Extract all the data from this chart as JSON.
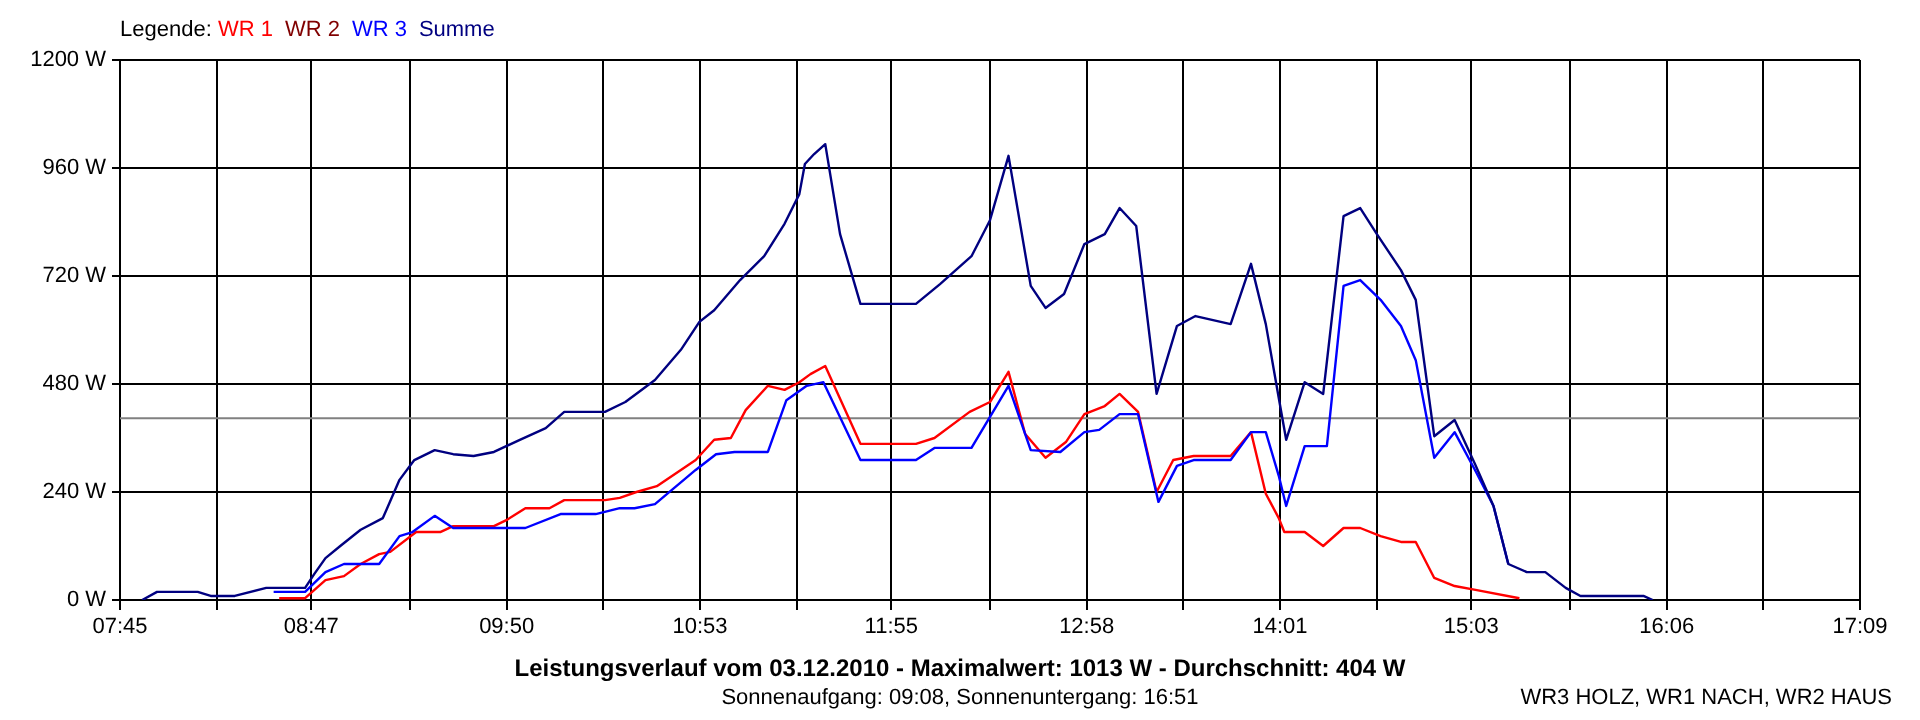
{
  "chart_data": {
    "type": "line",
    "title": "Leistungsverlauf vom 03.12.2010 - Maximalwert: 1013 W - Durchschnitt: 404 W",
    "subtitle": "Sonnenaufgang: 09:08, Sonnenuntergang: 16:51",
    "annotations": [
      "WR3 HOLZ, WR1 NACH, WR2 HAUS"
    ],
    "legend_title": "Legende:",
    "legend": "top left",
    "grid": true,
    "marker": "none",
    "line_style": "solid",
    "xlim": [
      7.75,
      17.15
    ],
    "xticks": [
      {
        "value": 7.75,
        "label": "07:45"
      },
      {
        "value": 8.2722,
        "label": null
      },
      {
        "value": 8.7833,
        "label": "08:47"
      },
      {
        "value": 9.3167,
        "label": null
      },
      {
        "value": 9.8389,
        "label": "09:50"
      },
      {
        "value": 10.3611,
        "label": null
      },
      {
        "value": 10.8833,
        "label": "10:53"
      },
      {
        "value": 11.4056,
        "label": null
      },
      {
        "value": 11.9167,
        "label": "11:55"
      },
      {
        "value": 12.45,
        "label": null
      },
      {
        "value": 12.9722,
        "label": "12:58"
      },
      {
        "value": 13.4944,
        "label": null
      },
      {
        "value": 14.0167,
        "label": "14:01"
      },
      {
        "value": 14.5389,
        "label": null
      },
      {
        "value": 15.05,
        "label": "15:03"
      },
      {
        "value": 15.5833,
        "label": null
      },
      {
        "value": 16.1056,
        "label": "16:06"
      },
      {
        "value": 16.6278,
        "label": null
      },
      {
        "value": 17.15,
        "label": "17:09"
      }
    ],
    "ylim": [
      0,
      1200
    ],
    "yticks": [
      {
        "value": 0,
        "label": "0 W"
      },
      {
        "value": 240,
        "label": "240 W"
      },
      {
        "value": 480,
        "label": "480 W"
      },
      {
        "value": 720,
        "label": "720 W"
      },
      {
        "value": 960,
        "label": "960 W"
      },
      {
        "value": 1200,
        "label": "1200 W"
      }
    ],
    "ref_lines": [
      {
        "axis": "y",
        "value": 404,
        "color": "#808080"
      }
    ],
    "series": [
      {
        "name": "WR 1",
        "color": "#ff0000",
        "x": [
          8.61,
          8.75,
          8.86,
          8.96,
          9.05,
          9.15,
          9.21,
          9.35,
          9.48,
          9.55,
          9.77,
          9.84,
          9.94,
          10.07,
          10.15,
          10.37,
          10.45,
          10.54,
          10.65,
          10.78,
          10.86,
          10.96,
          11.05,
          11.13,
          11.25,
          11.34,
          11.42,
          11.48,
          11.56,
          11.75,
          12.05,
          12.15,
          12.34,
          12.45,
          12.55,
          12.64,
          12.75,
          12.86,
          12.96,
          13.07,
          13.15,
          13.25,
          13.35,
          13.44,
          13.55,
          13.75,
          13.86,
          13.94,
          14.01,
          14.04,
          14.15,
          14.25,
          14.36,
          14.45,
          14.56,
          14.67,
          14.75,
          14.85,
          14.96,
          15.08,
          15.31
        ],
        "values": [
          4,
          4,
          44,
          53,
          80,
          102,
          107,
          151,
          151,
          164,
          164,
          178,
          204,
          204,
          222,
          222,
          227,
          240,
          253,
          289,
          311,
          356,
          360,
          422,
          476,
          467,
          484,
          502,
          520,
          347,
          347,
          360,
          418,
          440,
          507,
          369,
          316,
          351,
          413,
          431,
          458,
          418,
          240,
          311,
          320,
          320,
          373,
          236,
          182,
          151,
          151,
          120,
          160,
          160,
          142,
          129,
          129,
          49,
          31,
          22,
          4
        ]
      },
      {
        "name": "WR 2",
        "color": "#800000"
      },
      {
        "name": "WR 3",
        "color": "#0000ff",
        "x": [
          8.58,
          8.75,
          8.86,
          8.96,
          9.15,
          9.26,
          9.33,
          9.45,
          9.55,
          9.94,
          10.13,
          10.32,
          10.45,
          10.53,
          10.64,
          10.86,
          10.97,
          11.07,
          11.25,
          11.35,
          11.46,
          11.55,
          11.75,
          12.05,
          12.15,
          12.35,
          12.55,
          12.67,
          12.83,
          12.96,
          13.04,
          13.15,
          13.25,
          13.36,
          13.46,
          13.55,
          13.75,
          13.86,
          13.94,
          14.01,
          14.05,
          14.15,
          14.27,
          14.36,
          14.45,
          14.56,
          14.67,
          14.75,
          14.85,
          14.96,
          15.07,
          15.17,
          15.25
        ],
        "values": [
          18,
          18,
          62,
          80,
          80,
          142,
          151,
          187,
          160,
          160,
          191,
          191,
          204,
          204,
          213,
          289,
          324,
          329,
          329,
          444,
          476,
          484,
          311,
          311,
          338,
          338,
          476,
          333,
          329,
          373,
          378,
          413,
          413,
          218,
          298,
          311,
          311,
          373,
          373,
          276,
          209,
          342,
          342,
          698,
          711,
          667,
          609,
          533,
          316,
          373,
          289,
          209,
          80
        ]
      },
      {
        "name": "Summe",
        "color": "#000080",
        "x": [
          7.87,
          7.95,
          8.17,
          8.24,
          8.37,
          8.54,
          8.75,
          8.8,
          8.86,
          8.94,
          9.05,
          9.17,
          9.26,
          9.34,
          9.45,
          9.55,
          9.66,
          9.77,
          9.91,
          10.05,
          10.15,
          10.37,
          10.48,
          10.64,
          10.78,
          10.88,
          10.96,
          11.1,
          11.23,
          11.34,
          11.42,
          11.45,
          11.5,
          11.56,
          11.64,
          11.75,
          12.05,
          12.18,
          12.35,
          12.45,
          12.55,
          12.67,
          12.75,
          12.85,
          12.96,
          13.07,
          13.15,
          13.24,
          13.35,
          13.46,
          13.56,
          13.75,
          13.86,
          13.94,
          14.01,
          14.05,
          14.15,
          14.25,
          14.36,
          14.45,
          14.54,
          14.67,
          14.75,
          14.85,
          14.96,
          15.07,
          15.17,
          15.25,
          15.35,
          15.45,
          15.56,
          15.64,
          15.98,
          16.03
        ],
        "values": [
          0,
          18,
          18,
          9,
          9,
          27,
          27,
          58,
          93,
          120,
          156,
          182,
          267,
          311,
          333,
          324,
          320,
          329,
          356,
          382,
          418,
          418,
          440,
          489,
          556,
          618,
          644,
          711,
          764,
          836,
          902,
          969,
          991,
          1013,
          813,
          658,
          658,
          702,
          764,
          844,
          987,
          698,
          649,
          680,
          791,
          813,
          871,
          831,
          458,
          609,
          631,
          613,
          747,
          613,
          449,
          356,
          484,
          458,
          853,
          871,
          813,
          733,
          667,
          364,
          400,
          302,
          209,
          80,
          62,
          62,
          27,
          9,
          9,
          0
        ]
      }
    ]
  }
}
